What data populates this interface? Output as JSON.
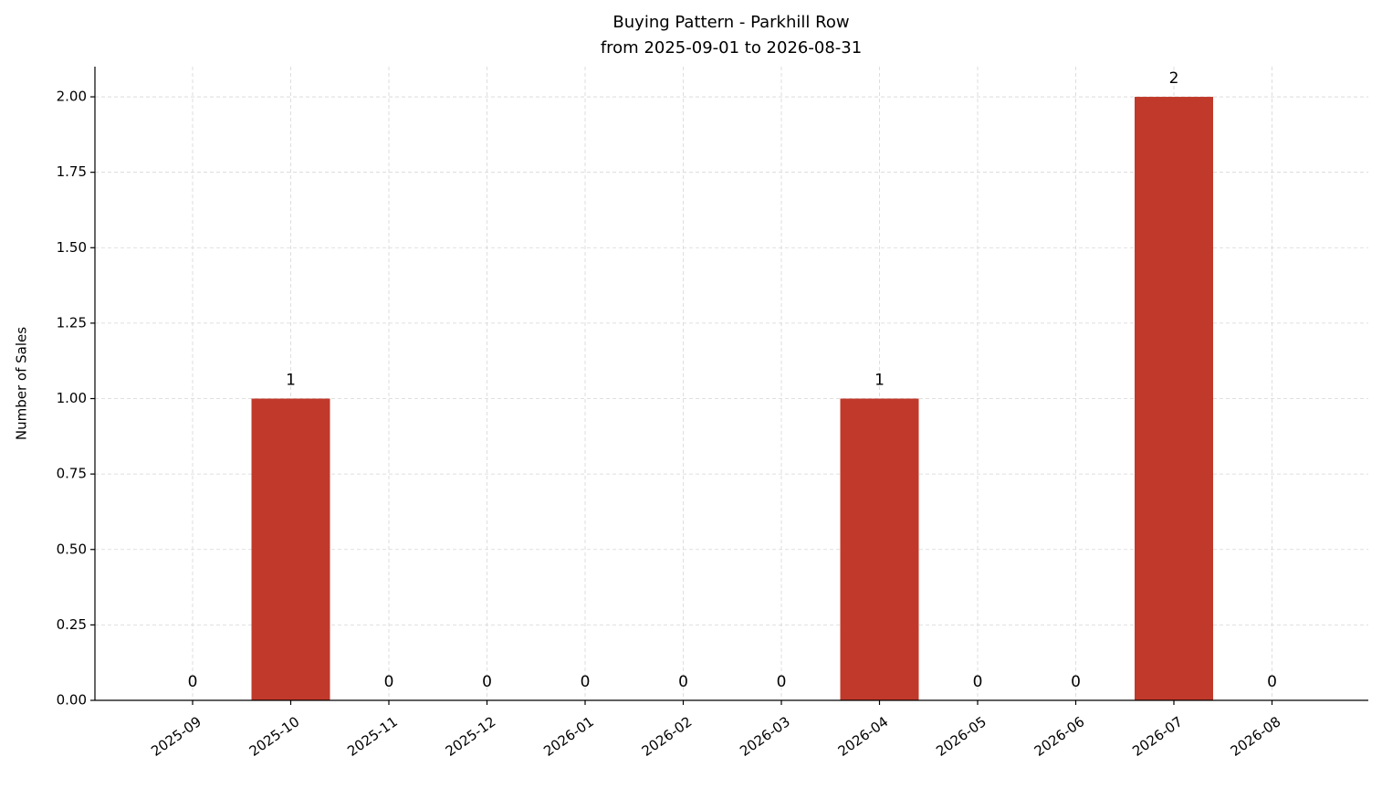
{
  "chart_data": {
    "type": "bar",
    "title": "Buying Pattern - Parkhill Row",
    "subtitle": "from 2025-09-01 to 2026-08-31",
    "y_label": "Number of Sales",
    "categories": [
      "2025-09",
      "2025-10",
      "2025-11",
      "2025-12",
      "2026-01",
      "2026-02",
      "2026-03",
      "2026-04",
      "2026-05",
      "2026-06",
      "2026-07",
      "2026-08"
    ],
    "values": [
      0,
      1,
      0,
      0,
      0,
      0,
      0,
      1,
      0,
      0,
      2,
      0
    ],
    "color": "#c0392b",
    "ylim": [
      0,
      2.1
    ],
    "yticks": [
      {
        "value": 0,
        "label": "0.00"
      },
      {
        "value": 0.25,
        "label": "0.25"
      },
      {
        "value": 0.5,
        "label": "0.50"
      },
      {
        "value": 0.75,
        "label": "0.75"
      },
      {
        "value": 1,
        "label": "1.00"
      },
      {
        "value": 1.25,
        "label": "1.25"
      },
      {
        "value": 1.5,
        "label": "1.50"
      },
      {
        "value": 1.75,
        "label": "1.75"
      },
      {
        "value": 2,
        "label": "2.00"
      }
    ],
    "grid": true
  }
}
